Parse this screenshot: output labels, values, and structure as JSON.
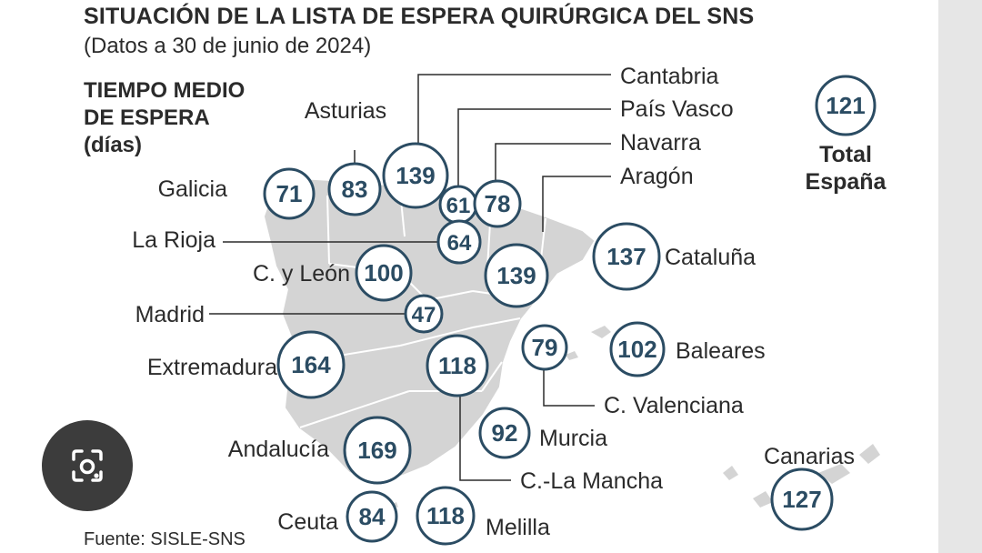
{
  "header": {
    "title": "SITUACIÓN DE LA LISTA DE ESPERA QUIRÚRGICA DEL SNS",
    "subtitle": "(Datos a 30 de junio de 2024)",
    "metric_line1": "TIEMPO MEDIO",
    "metric_line2": "DE ESPERA",
    "metric_unit": "(días)"
  },
  "source": "Fuente: SISLE-SNS",
  "total": {
    "value": 121,
    "label_line1": "Total",
    "label_line2": "España"
  },
  "colors": {
    "circle_stroke": "#2b4c63",
    "value_text": "#2b4c63",
    "label_text": "#2b2b2b",
    "map_fill": "#d4d4d4",
    "map_border": "#ffffff",
    "leader_line": "#2b2b2b",
    "side_bar": "#e6e6e6",
    "lens_button": "#3c3c3c"
  },
  "icons": {
    "lens_button": "google-lens-icon"
  },
  "chart_data": {
    "type": "bubble-map",
    "title": "SITUACIÓN DE LA LISTA DE ESPERA QUIRÚRGICA DEL SNS",
    "subtitle": "(Datos a 30 de junio de 2024)",
    "unit": "días",
    "categories": [
      "Galicia",
      "Asturias",
      "Cantabria",
      "País Vasco",
      "Navarra",
      "Aragón",
      "La Rioja",
      "C. y León",
      "Cataluña",
      "Madrid",
      "Extremadura",
      "C.-La Mancha",
      "C. Valenciana",
      "Baleares",
      "Murcia",
      "Andalucía",
      "Canarias",
      "Ceuta",
      "Melilla"
    ],
    "values": [
      71,
      83,
      139,
      61,
      78,
      139,
      64,
      100,
      137,
      47,
      164,
      118,
      79,
      102,
      92,
      169,
      127,
      84,
      118
    ],
    "total": {
      "name": "Total España",
      "value": 121
    }
  }
}
